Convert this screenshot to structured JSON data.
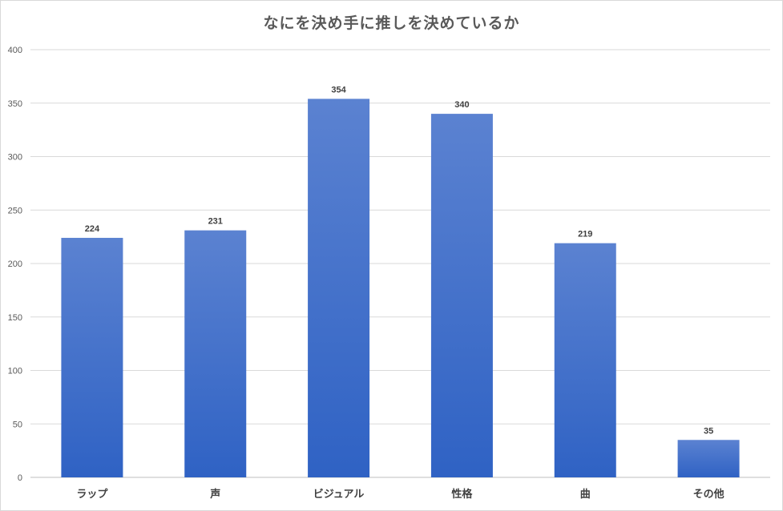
{
  "chart_data": {
    "type": "bar",
    "title": "なにを決め手に推しを決めているか",
    "xlabel": "",
    "ylabel": "",
    "categories": [
      "ラップ",
      "声",
      "ビジュアル",
      "性格",
      "曲",
      "その他"
    ],
    "values": [
      224,
      231,
      354,
      340,
      219,
      35
    ],
    "ylim": [
      0,
      400
    ],
    "yticks": [
      0,
      50,
      100,
      150,
      200,
      250,
      300,
      350,
      400
    ],
    "grid": true,
    "legend": "none",
    "colors": {
      "bar_top": "#5b82d1",
      "bar_bottom": "#2f62c4",
      "grid": "#d9d9d9",
      "axis": "#bfbfbf"
    }
  }
}
